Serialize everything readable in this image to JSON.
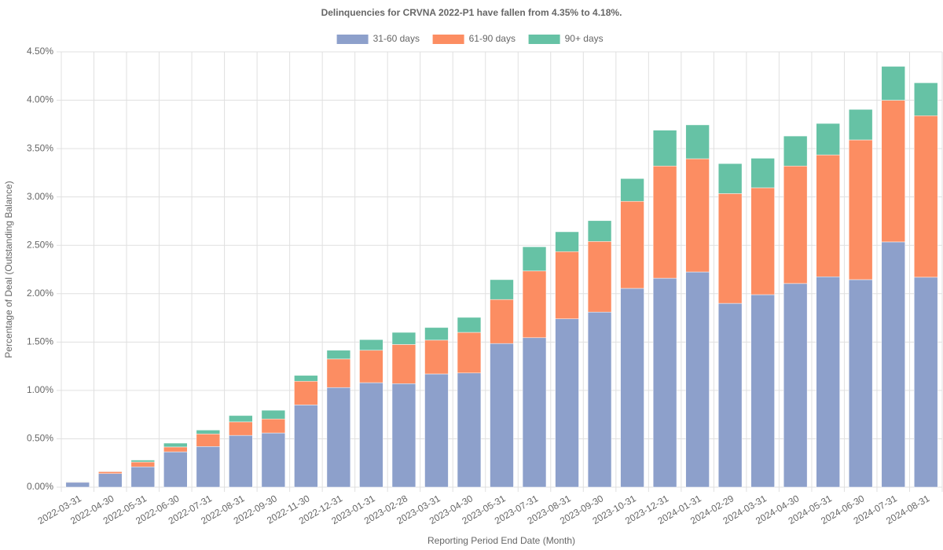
{
  "chart_data": {
    "type": "stacked_bar",
    "title": "Delinquencies for CRVNA 2022-P1 have fallen from 4.35% to 4.18%.",
    "x_label": "Reporting Period End Date (Month)",
    "y_label": "Percentage of Deal (Outstanding Balance)",
    "categories": [
      "2022-03-31",
      "2022-04-30",
      "2022-05-31",
      "2022-06-30",
      "2022-07-31",
      "2022-08-31",
      "2022-09-30",
      "2022-11-30",
      "2022-12-31",
      "2023-01-31",
      "2023-02-28",
      "2023-03-31",
      "2023-04-30",
      "2023-05-31",
      "2023-07-31",
      "2023-08-31",
      "2023-09-30",
      "2023-10-31",
      "2023-12-31",
      "2024-01-31",
      "2024-02-29",
      "2024-03-31",
      "2024-04-30",
      "2024-05-31",
      "2024-06-30",
      "2024-07-31",
      "2024-08-31"
    ],
    "series": [
      {
        "name": "31-60 days",
        "color": "#8da0cb",
        "values": [
          0.05,
          0.14,
          0.21,
          0.365,
          0.42,
          0.535,
          0.56,
          0.85,
          1.03,
          1.08,
          1.07,
          1.17,
          1.18,
          1.485,
          1.545,
          1.74,
          1.81,
          2.055,
          2.16,
          2.225,
          1.9,
          1.99,
          2.105,
          2.175,
          2.145,
          2.535,
          2.17
        ]
      },
      {
        "name": "61-90 days",
        "color": "#fc8d62",
        "values": [
          0.005,
          0.02,
          0.05,
          0.05,
          0.13,
          0.14,
          0.145,
          0.245,
          0.295,
          0.335,
          0.405,
          0.35,
          0.42,
          0.455,
          0.69,
          0.695,
          0.73,
          0.9,
          1.16,
          1.17,
          1.135,
          1.105,
          1.215,
          1.26,
          1.445,
          1.465,
          1.67
        ]
      },
      {
        "name": "90+ days",
        "color": "#66c2a5",
        "values": [
          0.005,
          0.005,
          0.02,
          0.04,
          0.04,
          0.065,
          0.09,
          0.06,
          0.09,
          0.11,
          0.125,
          0.13,
          0.155,
          0.205,
          0.25,
          0.205,
          0.215,
          0.235,
          0.37,
          0.35,
          0.31,
          0.305,
          0.31,
          0.325,
          0.315,
          0.35,
          0.34
        ]
      }
    ],
    "ylim": [
      0,
      4.5
    ],
    "yticks": [
      {
        "value": 0,
        "label": "0.00%"
      },
      {
        "value": 0.5,
        "label": "0.50%"
      },
      {
        "value": 1,
        "label": "1.00%"
      },
      {
        "value": 1.5,
        "label": "1.50%"
      },
      {
        "value": 2,
        "label": "2.00%"
      },
      {
        "value": 2.5,
        "label": "2.50%"
      },
      {
        "value": 3,
        "label": "3.00%"
      },
      {
        "value": 3.5,
        "label": "3.50%"
      },
      {
        "value": 4,
        "label": "4.00%"
      },
      {
        "value": 4.5,
        "label": "4.50%"
      }
    ],
    "grid": true,
    "legend": "top"
  }
}
